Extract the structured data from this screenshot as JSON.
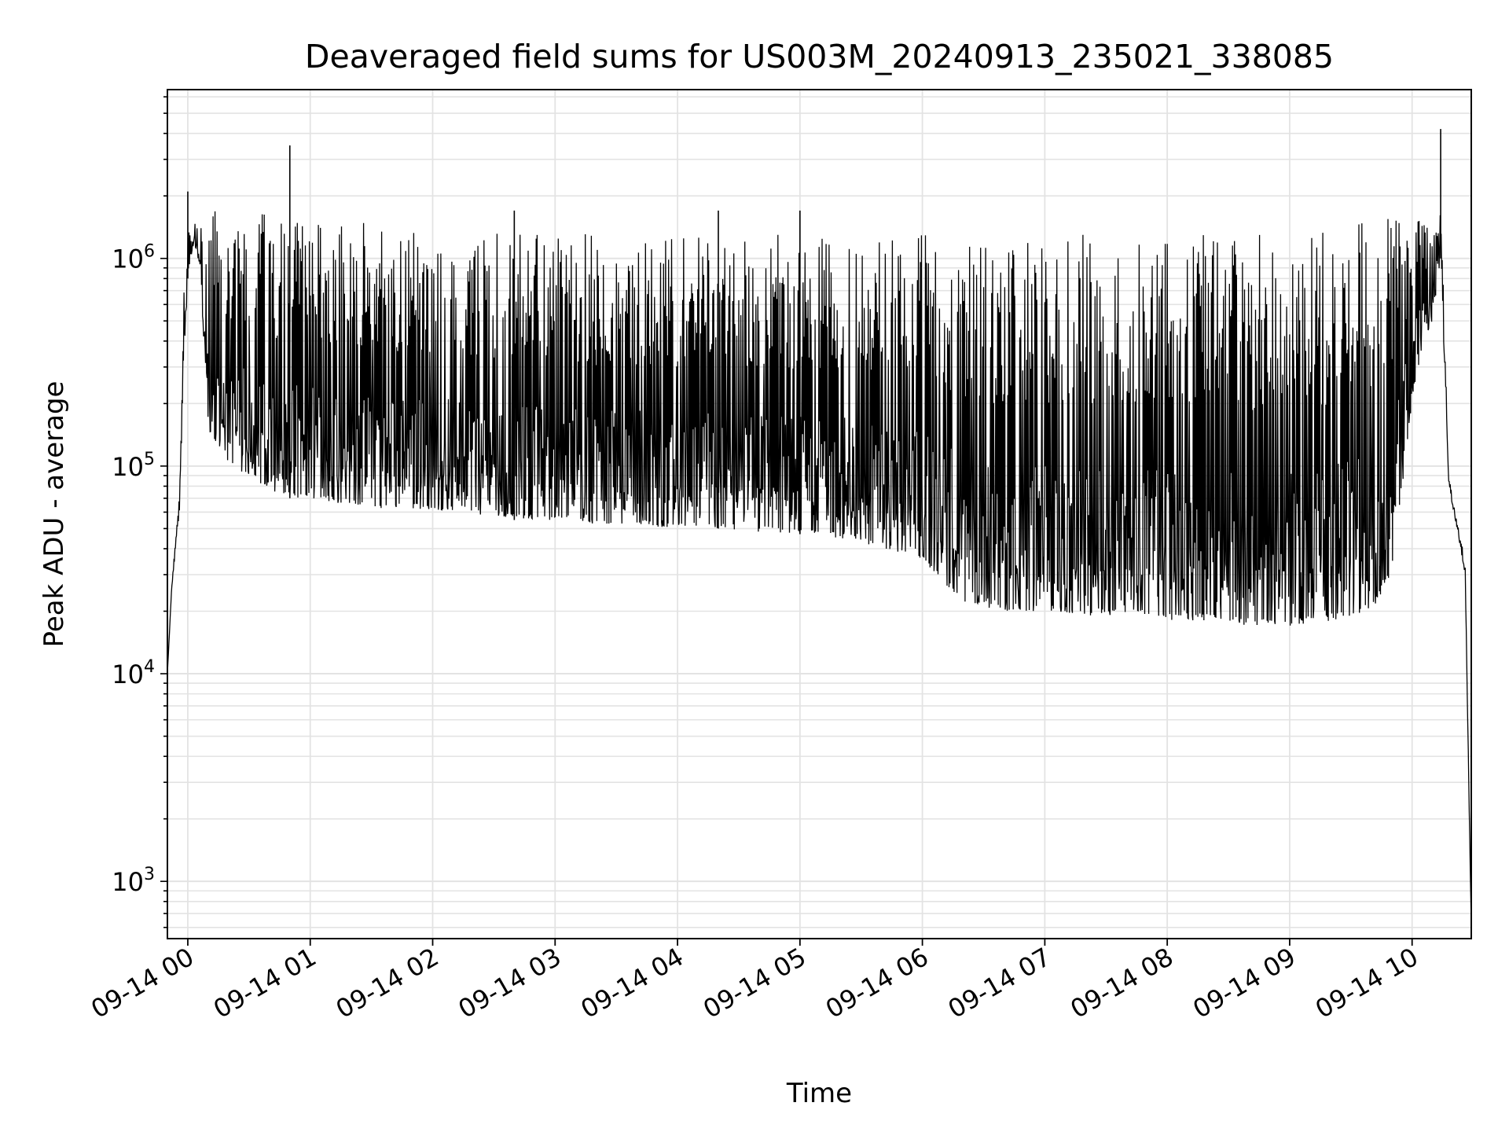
{
  "chart_data": {
    "type": "line",
    "title": "Deaveraged field sums for US003M_20240913_235021_338085",
    "xlabel": "Time",
    "ylabel": "Peak ADU - average",
    "yscale": "log",
    "ylim": [
      530,
      6500000
    ],
    "xlim": [
      "2024-09-13 23:50",
      "2024-09-14 10:29"
    ],
    "x_ticks": [
      "09-14 00",
      "09-14 01",
      "09-14 02",
      "09-14 03",
      "09-14 04",
      "09-14 05",
      "09-14 06",
      "09-14 07",
      "09-14 08",
      "09-14 09",
      "09-14 10"
    ],
    "y_ticks": [
      {
        "base": "10",
        "exp": "3",
        "value": 1000
      },
      {
        "base": "10",
        "exp": "4",
        "value": 10000
      },
      {
        "base": "10",
        "exp": "5",
        "value": 100000
      },
      {
        "base": "10",
        "exp": "6",
        "value": 1000000
      }
    ],
    "grid": true,
    "legend": "none",
    "line_color": "#000000",
    "series": [
      {
        "x": [
          "2024-09-13 23:50",
          "2024-09-13 23:52",
          "2024-09-13 23:54",
          "2024-09-13 23:56",
          "2024-09-13 23:58",
          "2024-09-14 00:00",
          "2024-09-14 00:03",
          "2024-09-14 00:06",
          "2024-09-14 00:10",
          "2024-09-14 00:20",
          "2024-09-14 00:30",
          "2024-09-14 00:40",
          "2024-09-14 00:50",
          "2024-09-14 01:00",
          "2024-09-14 01:20",
          "2024-09-14 01:40",
          "2024-09-14 02:00",
          "2024-09-14 02:20",
          "2024-09-14 02:40",
          "2024-09-14 03:00",
          "2024-09-14 03:20",
          "2024-09-14 03:40",
          "2024-09-14 04:00",
          "2024-09-14 04:20",
          "2024-09-14 04:40",
          "2024-09-14 05:00",
          "2024-09-14 05:20",
          "2024-09-14 05:40",
          "2024-09-14 06:00",
          "2024-09-14 06:20",
          "2024-09-14 06:40",
          "2024-09-14 07:00",
          "2024-09-14 07:20",
          "2024-09-14 07:40",
          "2024-09-14 08:00",
          "2024-09-14 08:20",
          "2024-09-14 08:40",
          "2024-09-14 09:00",
          "2024-09-14 09:20",
          "2024-09-14 09:40",
          "2024-09-14 09:50",
          "2024-09-14 10:00",
          "2024-09-14 10:03",
          "2024-09-14 10:06",
          "2024-09-14 10:10",
          "2024-09-14 10:14",
          "2024-09-14 10:18",
          "2024-09-14 10:22",
          "2024-09-14 10:26",
          "2024-09-14 10:29"
        ],
        "lower": [
          10000,
          25000,
          40000,
          60000,
          300000,
          800000,
          1200000,
          900000,
          150000,
          100000,
          90000,
          75000,
          70000,
          70000,
          65000,
          62000,
          62000,
          58000,
          55000,
          55000,
          52000,
          52000,
          50000,
          50000,
          48000,
          47000,
          45000,
          40000,
          35000,
          22000,
          20000,
          20000,
          19000,
          19000,
          18000,
          18000,
          17000,
          17000,
          18000,
          20000,
          30000,
          200000,
          300000,
          400000,
          500000,
          1000000,
          80000,
          50000,
          30000,
          600
        ],
        "upper": [
          10000,
          25000,
          45000,
          80000,
          700000,
          1300000,
          1500000,
          1450000,
          1700000,
          1800000,
          1750000,
          1700000,
          1650000,
          1650000,
          1600000,
          1500000,
          1450000,
          1400000,
          1400000,
          1350000,
          1300000,
          1300000,
          1300000,
          1300000,
          1300000,
          1300000,
          1300000,
          1300000,
          1300000,
          1300000,
          1300000,
          1300000,
          1300000,
          1300000,
          1300000,
          1300000,
          1300000,
          1300000,
          1400000,
          1600000,
          1700000,
          1700000,
          1600000,
          1500000,
          1400000,
          2000000,
          90000,
          55000,
          35000,
          600
        ],
        "spikes": [
          {
            "x": "2024-09-14 00:00",
            "y": 2100000
          },
          {
            "x": "2024-09-14 00:50",
            "y": 3500000
          },
          {
            "x": "2024-09-14 02:40",
            "y": 1700000
          },
          {
            "x": "2024-09-14 04:20",
            "y": 1700000
          },
          {
            "x": "2024-09-14 05:00",
            "y": 1700000
          },
          {
            "x": "2024-09-14 10:14",
            "y": 4200000
          }
        ]
      }
    ]
  }
}
